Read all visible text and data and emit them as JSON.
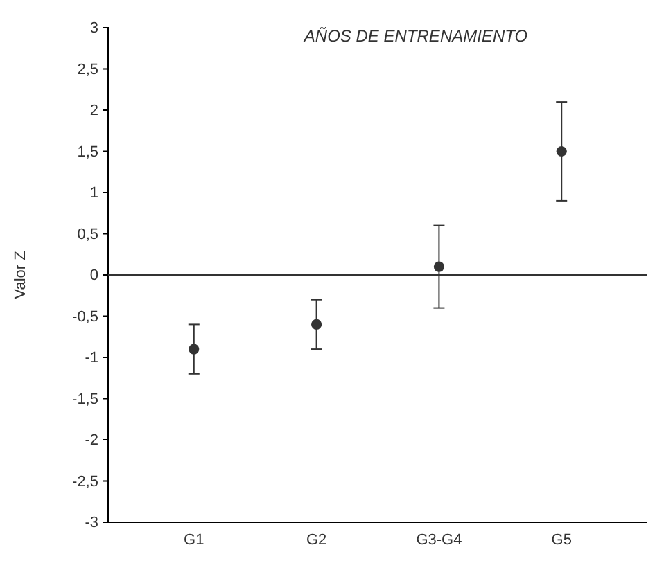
{
  "chart_data": {
    "type": "scatter",
    "title": "AÑOS DE ENTRENAMIENTO",
    "ylabel": "Valor Z",
    "categories": [
      "G1",
      "G2",
      "G3-G4",
      "G5"
    ],
    "values": [
      -0.9,
      -0.6,
      0.1,
      1.5
    ],
    "errors": [
      0.3,
      0.3,
      0.5,
      0.6
    ],
    "color": "#333333",
    "marker": "circle",
    "grid": false,
    "ylim": [
      -3,
      3
    ],
    "yticks": [
      {
        "value": -3,
        "label": "-3"
      },
      {
        "value": -2.5,
        "label": "-2,5"
      },
      {
        "value": -2,
        "label": "-2"
      },
      {
        "value": -1.5,
        "label": "-1,5"
      },
      {
        "value": -1,
        "label": "-1"
      },
      {
        "value": -0.5,
        "label": "-0,5"
      },
      {
        "value": 0,
        "label": "0"
      },
      {
        "value": 0.5,
        "label": "0,5"
      },
      {
        "value": 1,
        "label": "1"
      },
      {
        "value": 1.5,
        "label": "1,5"
      },
      {
        "value": 2,
        "label": "2"
      },
      {
        "value": 2.5,
        "label": "2,5"
      },
      {
        "value": 3,
        "label": "3"
      }
    ],
    "ref_lines": [
      {
        "axis": "y",
        "value": 0,
        "color": "#333333"
      }
    ]
  }
}
